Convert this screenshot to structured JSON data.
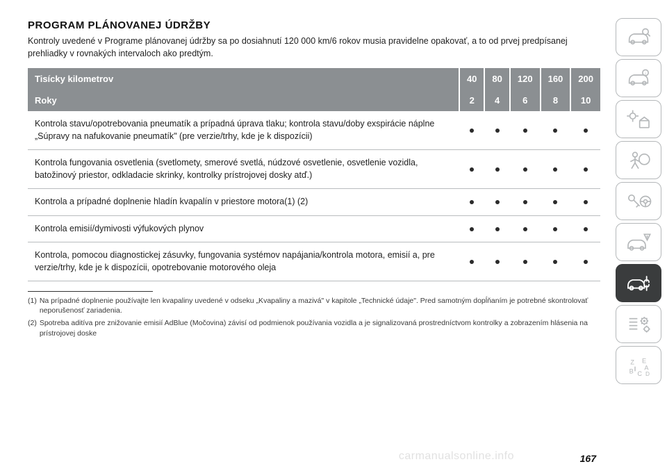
{
  "title": "PROGRAM PLÁNOVANEJ ÚDRŽBY",
  "intro": "Kontroly uvedené v Programe plánovanej údržby sa po dosiahnutí 120 000 km/6 rokov musia pravidelne opakovať, a to od prvej predpísanej prehliadky v rovnakých intervaloch ako predtým.",
  "table": {
    "header1": {
      "label": "Tisícky kilometrov",
      "vals": [
        "40",
        "80",
        "120",
        "160",
        "200"
      ]
    },
    "header2": {
      "label": "Roky",
      "vals": [
        "2",
        "4",
        "6",
        "8",
        "10"
      ]
    },
    "rows": [
      {
        "label": "Kontrola stavu/opotrebovania pneumatík a prípadná úprava tlaku; kontrola stavu/doby exspirácie náplne „Súpravy na nafukovanie pneumatík\" (pre verzie/trhy, kde je k dispozícii)",
        "marks": [
          true,
          true,
          true,
          true,
          true
        ]
      },
      {
        "label": "Kontrola fungovania osvetlenia (svetlomety, smerové svetlá, núdzové osvetlenie, osvetlenie vozidla, batožinový priestor, odkladacie skrinky, kontrolky prístrojovej dosky atď.)",
        "marks": [
          true,
          true,
          true,
          true,
          true
        ]
      },
      {
        "label": "Kontrola a prípadné doplnenie hladín kvapalín v priestore motora(1) (2)",
        "marks": [
          true,
          true,
          true,
          true,
          true
        ]
      },
      {
        "label": "Kontrola emisií/dymivosti výfukových plynov",
        "marks": [
          true,
          true,
          true,
          true,
          true
        ]
      },
      {
        "label": "Kontrola, pomocou diagnostickej zásuvky, fungovania systémov napájania/kontrola motora, emisií a, pre verzie/trhy, kde je k dispozícii, opotrebovanie motorového oleja",
        "marks": [
          true,
          true,
          true,
          true,
          true
        ]
      }
    ]
  },
  "footnotes": [
    {
      "num": "(1)",
      "text": "Na prípadné doplnenie používajte len kvapaliny uvedené v odseku „Kvapaliny a mazivá\" v kapitole „Technické údaje\". Pred samotným dopĺňaním je potrebné skontrolovať neporušenosť zariadenia."
    },
    {
      "num": "(2)",
      "text": "Spotreba aditíva pre znižovanie emisií AdBlue (Močovina) závisí od podmienok používania vozidla a je signalizovaná prostredníctvom kontrolky a zobrazením hlásenia na prístrojovej doske"
    }
  ],
  "pageNumber": "167",
  "watermark": "carmanualsonline.info",
  "colors": {
    "headerBg": "#8b8f92",
    "headerText": "#ffffff",
    "border": "#b9bcbe",
    "activeNav": "#3a3c3d",
    "navStroke": "#b5b8ba"
  },
  "sidenav": [
    {
      "name": "nav-inspect",
      "active": false
    },
    {
      "name": "nav-info",
      "active": false
    },
    {
      "name": "nav-lights",
      "active": false
    },
    {
      "name": "nav-airbag",
      "active": false
    },
    {
      "name": "nav-key-wheel",
      "active": false
    },
    {
      "name": "nav-warning",
      "active": false
    },
    {
      "name": "nav-service",
      "active": true
    },
    {
      "name": "nav-settings",
      "active": false
    },
    {
      "name": "nav-index",
      "active": false
    }
  ]
}
